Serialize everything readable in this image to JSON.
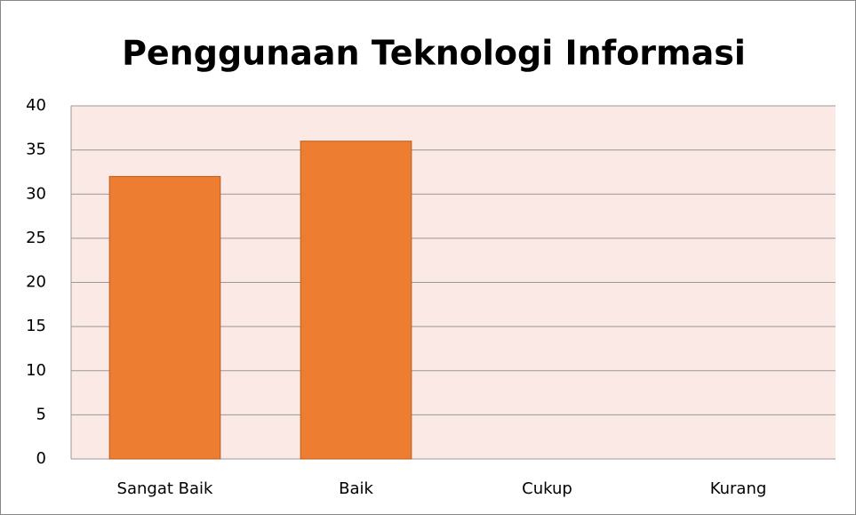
{
  "chart_data": {
    "type": "bar",
    "title": "Penggunaan Teknologi Informasi",
    "categories": [
      "Sangat Baik",
      "Baik",
      "Cukup",
      "Kurang"
    ],
    "values": [
      32,
      36,
      0,
      0
    ],
    "color": "#ed7d31",
    "ylim": [
      0,
      40
    ],
    "yticks": [
      0,
      5,
      10,
      15,
      20,
      25,
      30,
      35,
      40
    ],
    "grid": true
  }
}
